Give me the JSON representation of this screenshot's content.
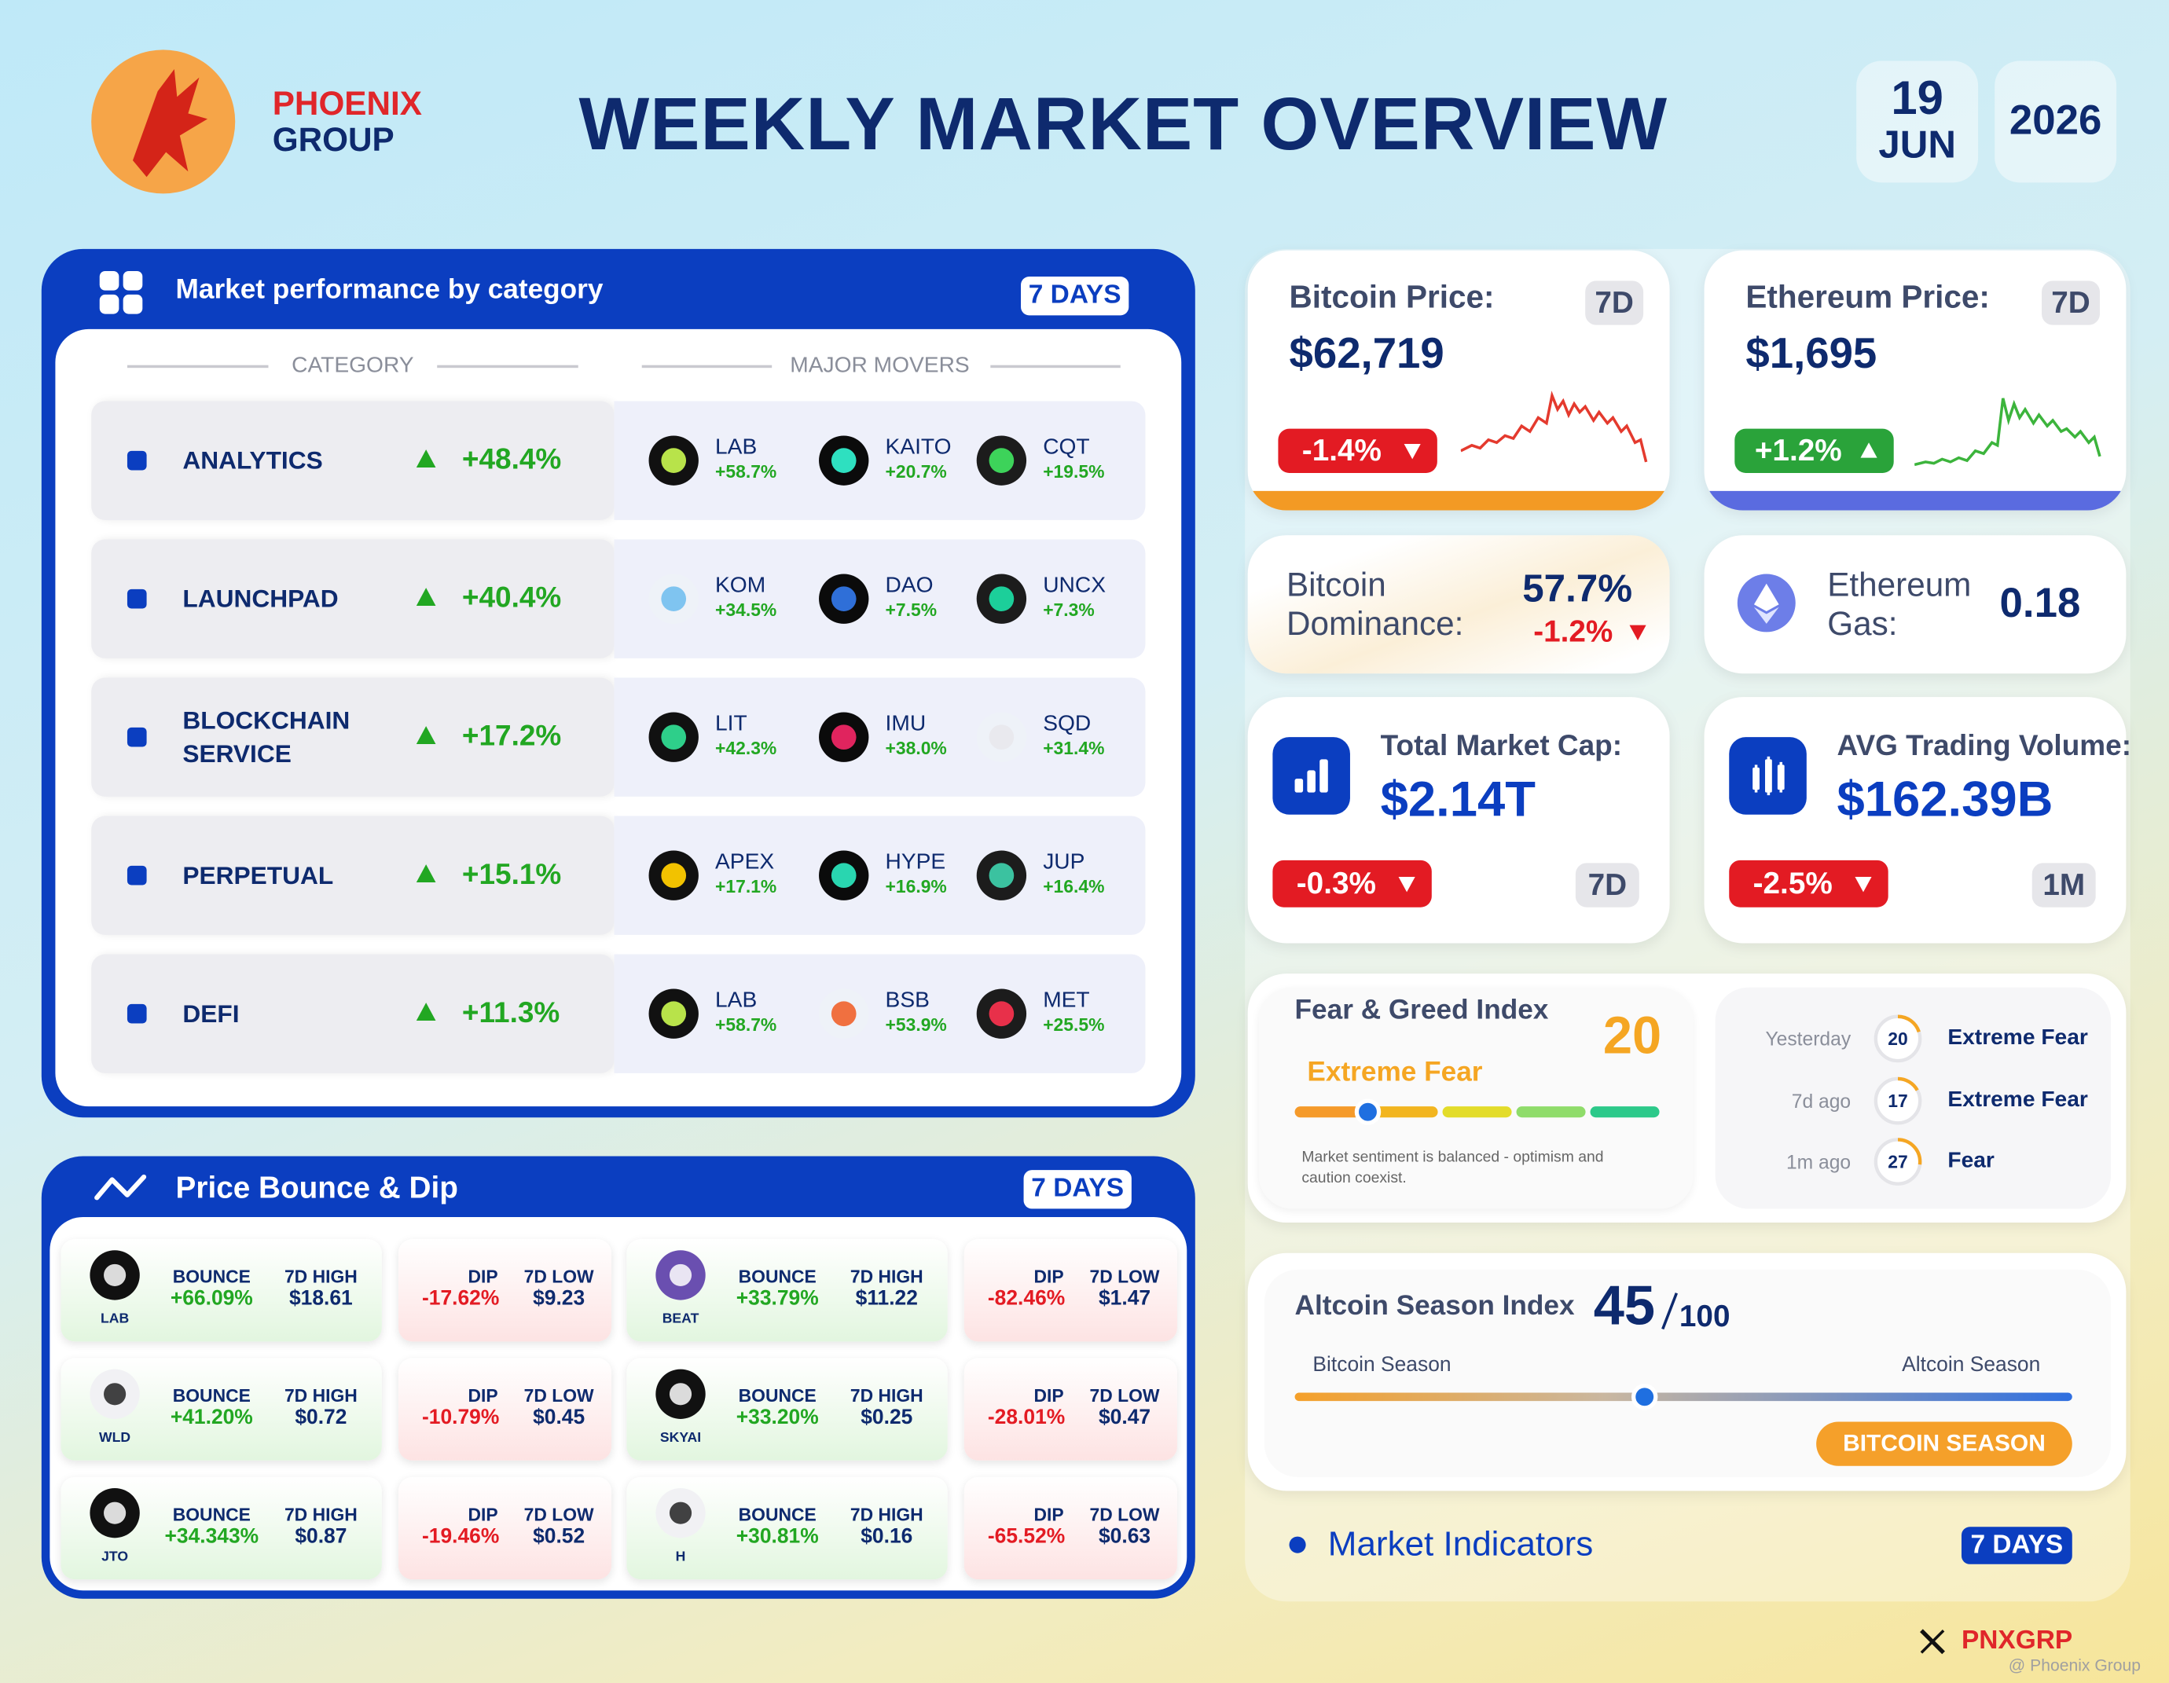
{
  "header": {
    "brand_line1": "PHOENIX",
    "brand_line2": "GROUP",
    "title": "WEEKLY MARKET OVERVIEW",
    "day": "19",
    "month": "JUN",
    "year": "2026"
  },
  "category_panel": {
    "title": "Market performance by category",
    "period": "7 DAYS",
    "col_category": "CATEGORY",
    "col_movers": "MAJOR MOVERS",
    "rows": [
      {
        "name": "ANALYTICS",
        "change": "+48.4%",
        "movers": [
          {
            "symbol": "LAB",
            "change": "+58.7%"
          },
          {
            "symbol": "KAITO",
            "change": "+20.7%"
          },
          {
            "symbol": "CQT",
            "change": "+19.5%"
          }
        ]
      },
      {
        "name": "LAUNCHPAD",
        "change": "+40.4%",
        "movers": [
          {
            "symbol": "KOM",
            "change": "+34.5%"
          },
          {
            "symbol": "DAO",
            "change": "+7.5%"
          },
          {
            "symbol": "UNCX",
            "change": "+7.3%"
          }
        ]
      },
      {
        "name": "BLOCKCHAIN SERVICE",
        "change": "+17.2%",
        "movers": [
          {
            "symbol": "LIT",
            "change": "+42.3%"
          },
          {
            "symbol": "IMU",
            "change": "+38.0%"
          },
          {
            "symbol": "SQD",
            "change": "+31.4%"
          }
        ]
      },
      {
        "name": "PERPETUAL",
        "change": "+15.1%",
        "movers": [
          {
            "symbol": "APEX",
            "change": "+17.1%"
          },
          {
            "symbol": "HYPE",
            "change": "+16.9%"
          },
          {
            "symbol": "JUP",
            "change": "+16.4%"
          }
        ]
      },
      {
        "name": "DEFI",
        "change": "+11.3%",
        "movers": [
          {
            "symbol": "LAB",
            "change": "+58.7%"
          },
          {
            "symbol": "BSB",
            "change": "+53.9%"
          },
          {
            "symbol": "MET",
            "change": "+25.5%"
          }
        ]
      }
    ]
  },
  "bounce_panel": {
    "title": "Price Bounce & Dip",
    "period": "7 DAYS",
    "bounce_label": "BOUNCE",
    "high_label": "7D HIGH",
    "dip_label": "DIP",
    "low_label": "7D LOW",
    "items": [
      {
        "token": "LAB",
        "bounce": "+66.09%",
        "high": "$18.61",
        "dip": "-17.62%",
        "low": "$9.23"
      },
      {
        "token": "BEAT",
        "bounce": "+33.79%",
        "high": "$11.22",
        "dip": "-82.46%",
        "low": "$1.47"
      },
      {
        "token": "WLD",
        "bounce": "+41.20%",
        "high": "$0.72",
        "dip": "-10.79%",
        "low": "$0.45"
      },
      {
        "token": "SKYAI",
        "bounce": "+33.20%",
        "high": "$0.25",
        "dip": "-28.01%",
        "low": "$0.47"
      },
      {
        "token": "JTO",
        "bounce": "+34.343%",
        "high": "$0.87",
        "dip": "-19.46%",
        "low": "$0.52"
      },
      {
        "token": "H",
        "bounce": "+30.81%",
        "high": "$0.16",
        "dip": "-65.52%",
        "low": "$0.63"
      }
    ]
  },
  "bitcoin_price": {
    "label": "Bitcoin Price:",
    "period": "7D",
    "price": "$62,719",
    "change": "-1.4%"
  },
  "ethereum_price": {
    "label": "Ethereum Price:",
    "period": "7D",
    "price": "$1,695",
    "change": "+1.2%"
  },
  "bitcoin_dominance": {
    "label": "Bitcoin Dominance:",
    "value": "57.7%",
    "change": "-1.2%"
  },
  "ethereum_gas": {
    "label": "Ethereum Gas:",
    "value": "0.18"
  },
  "market_cap": {
    "label": "Total Market Cap:",
    "value": "$2.14T",
    "change": "-0.3%",
    "period": "7D"
  },
  "trading_volume": {
    "label": "AVG Trading Volume:",
    "value": "$162.39B",
    "change": "-2.5%",
    "period": "1M"
  },
  "fear_greed": {
    "title": "Fear & Greed Index",
    "value": 20,
    "status": "Extreme Fear",
    "note": "Market sentiment is balanced - optimism and caution coexist.",
    "history": [
      {
        "when": "Yesterday",
        "value": 20,
        "status": "Extreme Fear"
      },
      {
        "when": "7d ago",
        "value": 17,
        "status": "Extreme Fear"
      },
      {
        "when": "1m ago",
        "value": 27,
        "status": "Fear"
      }
    ]
  },
  "altcoin_season": {
    "title": "Altcoin Season Index",
    "value": 45,
    "max": 100,
    "left_label": "Bitcoin Season",
    "right_label": "Altcoin Season",
    "badge": "BITCOIN SEASON"
  },
  "footer": {
    "label": "Market Indicators",
    "period": "7 DAYS",
    "handle": "PNXGRP",
    "watermark": "@ Phoenix Group"
  }
}
